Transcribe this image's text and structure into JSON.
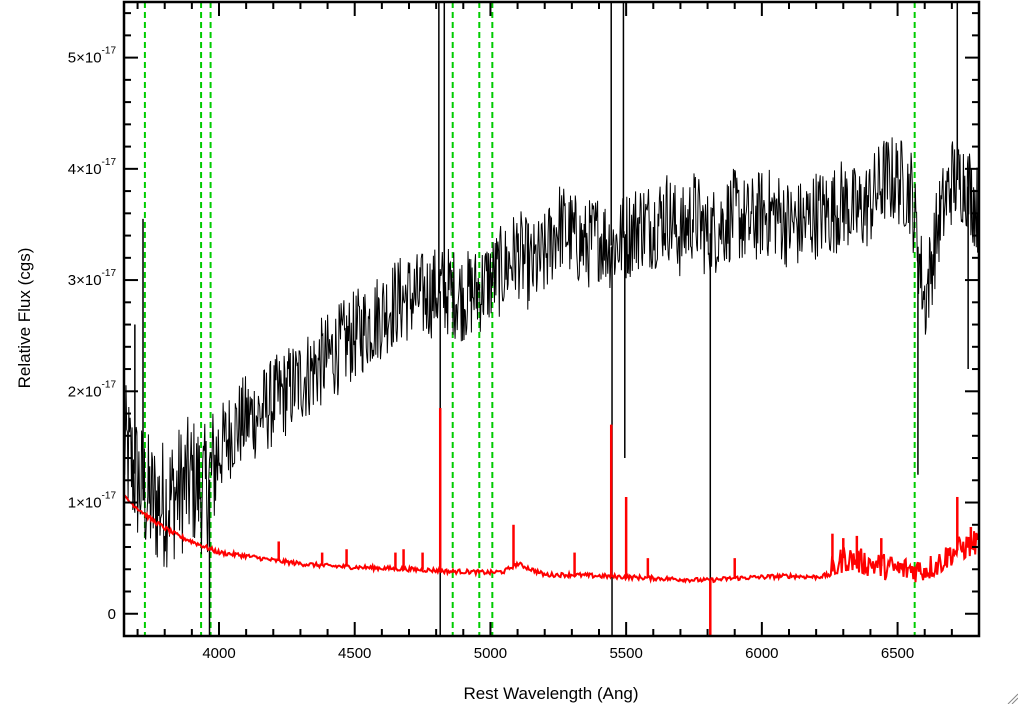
{
  "chart_data": {
    "type": "line",
    "title": "",
    "xlabel": "Rest Wavelength (Ang)",
    "ylabel": "Relative Flux (cgs)",
    "xlim": [
      3650,
      6800
    ],
    "ylim": [
      -2e-18,
      5.5e-17
    ],
    "x_ticks": [
      {
        "value": 4000,
        "label": "4000"
      },
      {
        "value": 4500,
        "label": "4500"
      },
      {
        "value": 5000,
        "label": "5000"
      },
      {
        "value": 5500,
        "label": "5500"
      },
      {
        "value": 6000,
        "label": "6000"
      },
      {
        "value": 6500,
        "label": "6500"
      }
    ],
    "y_ticks": [
      {
        "value": 0,
        "mantissa": "0",
        "exponent": ""
      },
      {
        "value": 1e-17,
        "mantissa": "1×10",
        "exponent": "-17"
      },
      {
        "value": 2e-17,
        "mantissa": "2×10",
        "exponent": "-17"
      },
      {
        "value": 3e-17,
        "mantissa": "3×10",
        "exponent": "-17"
      },
      {
        "value": 4e-17,
        "mantissa": "4×10",
        "exponent": "-17"
      },
      {
        "value": 5e-17,
        "mantissa": "5×10",
        "exponent": "-17"
      }
    ],
    "grid": false,
    "legend": "none",
    "series": [
      {
        "color": "#000000",
        "x": [
          3650,
          3700,
          3750,
          3800,
          3850,
          3900,
          3950,
          4000,
          4050,
          4100,
          4150,
          4200,
          4250,
          4300,
          4350,
          4400,
          4450,
          4500,
          4550,
          4600,
          4650,
          4700,
          4750,
          4800,
          4850,
          4900,
          4950,
          5000,
          5050,
          5100,
          5150,
          5200,
          5250,
          5300,
          5350,
          5400,
          5450,
          5500,
          5550,
          5600,
          5650,
          5700,
          5750,
          5800,
          5850,
          5900,
          5950,
          6000,
          6050,
          6100,
          6150,
          6200,
          6250,
          6300,
          6350,
          6400,
          6450,
          6500,
          6550,
          6600,
          6650,
          6700,
          6750,
          6800
        ],
        "y": [
          1.5e-17,
          1.2e-17,
          1e-17,
          1e-17,
          1.1e-17,
          1.2e-17,
          1.1e-17,
          1.45e-17,
          1.65e-17,
          1.75e-17,
          1.8e-17,
          1.9e-17,
          2e-17,
          2.1e-17,
          2.2e-17,
          2.3e-17,
          2.4e-17,
          2.5e-17,
          2.6e-17,
          2.7e-17,
          2.8e-17,
          2.85e-17,
          2.85e-17,
          2.9e-17,
          2.9e-17,
          2.85e-17,
          2.9e-17,
          3e-17,
          3.1e-17,
          3.25e-17,
          3.1e-17,
          3.2e-17,
          3.5e-17,
          3.4e-17,
          3.3e-17,
          3.4e-17,
          3.3e-17,
          3.4e-17,
          3.5e-17,
          3.5e-17,
          3.6e-17,
          3.4e-17,
          3.6e-17,
          3.4e-17,
          3.5e-17,
          3.6e-17,
          3.5e-17,
          3.6e-17,
          3.6e-17,
          3.5e-17,
          3.5e-17,
          3.6e-17,
          3.6e-17,
          3.7e-17,
          3.6e-17,
          3.7e-17,
          3.9e-17,
          3.9e-17,
          3.8e-17,
          2.8e-17,
          3.5e-17,
          3.9e-17,
          3.9e-17,
          3.6e-17
        ]
      },
      {
        "color": "#ff0000",
        "x": [
          3650,
          3700,
          3750,
          3800,
          3850,
          3900,
          3950,
          4000,
          4100,
          4200,
          4300,
          4400,
          4500,
          4600,
          4700,
          4800,
          4850,
          4900,
          5000,
          5050,
          5100,
          5200,
          5300,
          5400,
          5500,
          5600,
          5700,
          5800,
          5900,
          6000,
          6100,
          6200,
          6250,
          6300,
          6400,
          6500,
          6600,
          6650,
          6700,
          6750,
          6800
        ],
        "y": [
          1.05e-17,
          9.5e-18,
          8.5e-18,
          7.7e-18,
          7e-18,
          6.5e-18,
          6e-18,
          5.5e-18,
          5.2e-18,
          4.8e-18,
          4.5e-18,
          4.3e-18,
          4.2e-18,
          4.1e-18,
          4e-18,
          3.9e-18,
          3.8e-18,
          3.8e-18,
          3.7e-18,
          3.8e-18,
          4.5e-18,
          3.5e-18,
          3.5e-18,
          3.4e-18,
          3.3e-18,
          3.2e-18,
          3.1e-18,
          3e-18,
          3.2e-18,
          3.3e-18,
          3.4e-18,
          3.3e-18,
          3.5e-18,
          5e-18,
          4.5e-18,
          4e-18,
          4e-18,
          4.5e-18,
          5.5e-18,
          6e-18,
          6.5e-18
        ]
      }
    ],
    "emission_spikes_red": [
      {
        "x": 4220,
        "y": 6.5e-18
      },
      {
        "x": 4380,
        "y": 5.5e-18
      },
      {
        "x": 4470,
        "y": 5.8e-18
      },
      {
        "x": 4650,
        "y": 5.5e-18
      },
      {
        "x": 4680,
        "y": 5.8e-18
      },
      {
        "x": 4750,
        "y": 5.5e-18
      },
      {
        "x": 4815,
        "y": 1.85e-17
      },
      {
        "x": 5085,
        "y": 8e-18
      },
      {
        "x": 5310,
        "y": 5.5e-18
      },
      {
        "x": 5445,
        "y": 1.7e-17
      },
      {
        "x": 5500,
        "y": 1.05e-17
      },
      {
        "x": 5580,
        "y": 5e-18
      },
      {
        "x": 5810,
        "y": -2e-18
      },
      {
        "x": 5900,
        "y": 5e-18
      },
      {
        "x": 6260,
        "y": 7.2e-18
      },
      {
        "x": 6300,
        "y": 6.8e-18
      },
      {
        "x": 6350,
        "y": 7e-18
      },
      {
        "x": 6440,
        "y": 6.8e-18
      },
      {
        "x": 6720,
        "y": 1.05e-17
      },
      {
        "x": 6770,
        "y": 7.8e-18
      }
    ],
    "emission_spikes_black": [
      {
        "x": 3720,
        "y": 3.55e-17
      },
      {
        "x": 3690,
        "y": 2.6e-17
      },
      {
        "x": 3965,
        "y": -2e-18
      },
      {
        "x": 4810,
        "y": 5.5e-17
      },
      {
        "x": 4815,
        "y": -2e-18
      },
      {
        "x": 4830,
        "y": 5.5e-17
      },
      {
        "x": 5445,
        "y": 5.5e-17
      },
      {
        "x": 5448,
        "y": -2e-18
      },
      {
        "x": 5490,
        "y": 5.5e-17
      },
      {
        "x": 5495,
        "y": 1.4e-17
      },
      {
        "x": 5810,
        "y": -2e-18
      },
      {
        "x": 6575,
        "y": 1.25e-17
      },
      {
        "x": 6720,
        "y": 5.5e-17
      },
      {
        "x": 6760,
        "y": 2.2e-17
      }
    ],
    "vertical_markers": {
      "color": "#00cc00",
      "style": "dashed",
      "x": [
        3727,
        3934,
        3969,
        4861,
        4959,
        5007,
        6563
      ]
    }
  }
}
